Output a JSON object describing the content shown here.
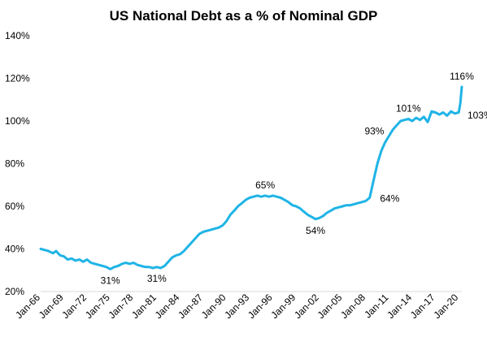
{
  "chart_data": {
    "type": "line",
    "title": "US National Debt as a % of Nominal GDP",
    "xlabel": "",
    "ylabel": "",
    "ylim": [
      20,
      140
    ],
    "y_ticks": [
      20,
      40,
      60,
      80,
      100,
      120,
      140
    ],
    "y_tick_labels": [
      "20%",
      "40%",
      "60%",
      "80%",
      "100%",
      "120%",
      "140%"
    ],
    "x_range": [
      1966,
      2020.4
    ],
    "x_ticks": [
      1966,
      1969,
      1972,
      1975,
      1978,
      1981,
      1984,
      1987,
      1990,
      1993,
      1996,
      1999,
      2002,
      2005,
      2008,
      2011,
      2014,
      2017,
      2020
    ],
    "x_tick_labels": [
      "Jan-66",
      "Jan-69",
      "Jan-72",
      "Jan-75",
      "Jan-78",
      "Jan-81",
      "Jan-84",
      "Jan-87",
      "Jan-90",
      "Jan-93",
      "Jan-96",
      "Jan-99",
      "Jan-02",
      "Jan-05",
      "Jan-08",
      "Jan-11",
      "Jan-14",
      "Jan-17",
      "Jan-20"
    ],
    "grid": false,
    "legend": "none",
    "series": [
      {
        "color": "#1fb4e6",
        "points": [
          [
            1966.0,
            40
          ],
          [
            1967.0,
            39
          ],
          [
            1967.6,
            38
          ],
          [
            1968.0,
            39
          ],
          [
            1968.5,
            37
          ],
          [
            1969.0,
            36.5
          ],
          [
            1969.5,
            35
          ],
          [
            1970.0,
            35.5
          ],
          [
            1970.5,
            34.5
          ],
          [
            1971.0,
            35
          ],
          [
            1971.5,
            34
          ],
          [
            1972.0,
            35
          ],
          [
            1972.5,
            33.5
          ],
          [
            1973.0,
            33
          ],
          [
            1973.5,
            32.5
          ],
          [
            1974.0,
            32
          ],
          [
            1974.5,
            31.5
          ],
          [
            1975.0,
            30.5
          ],
          [
            1975.5,
            31.5
          ],
          [
            1976.0,
            32
          ],
          [
            1976.5,
            33
          ],
          [
            1977.0,
            33.5
          ],
          [
            1977.5,
            33
          ],
          [
            1978.0,
            33.5
          ],
          [
            1978.5,
            32.5
          ],
          [
            1979.0,
            32
          ],
          [
            1979.5,
            31.5
          ],
          [
            1980.0,
            31.5
          ],
          [
            1980.5,
            31
          ],
          [
            1981.0,
            31.5
          ],
          [
            1981.5,
            31
          ],
          [
            1982.0,
            32
          ],
          [
            1982.5,
            34
          ],
          [
            1983.0,
            36
          ],
          [
            1983.5,
            37
          ],
          [
            1984.0,
            37.5
          ],
          [
            1984.5,
            39
          ],
          [
            1985.0,
            41
          ],
          [
            1985.5,
            43
          ],
          [
            1986.0,
            45
          ],
          [
            1986.5,
            47
          ],
          [
            1987.0,
            48
          ],
          [
            1987.5,
            48.5
          ],
          [
            1988.0,
            49
          ],
          [
            1988.5,
            49.5
          ],
          [
            1989.0,
            50
          ],
          [
            1989.5,
            51
          ],
          [
            1990.0,
            53
          ],
          [
            1990.5,
            56
          ],
          [
            1991.0,
            58
          ],
          [
            1991.5,
            60
          ],
          [
            1992.0,
            61.5
          ],
          [
            1992.5,
            63
          ],
          [
            1993.0,
            64
          ],
          [
            1993.5,
            64.5
          ],
          [
            1994.0,
            65
          ],
          [
            1994.5,
            64.5
          ],
          [
            1995.0,
            65
          ],
          [
            1995.5,
            64.5
          ],
          [
            1996.0,
            65
          ],
          [
            1996.5,
            64.5
          ],
          [
            1997.0,
            64
          ],
          [
            1997.5,
            63
          ],
          [
            1998.0,
            62
          ],
          [
            1998.5,
            60.5
          ],
          [
            1999.0,
            60
          ],
          [
            1999.5,
            59
          ],
          [
            2000.0,
            57.5
          ],
          [
            2000.5,
            56
          ],
          [
            2001.0,
            55
          ],
          [
            2001.5,
            54
          ],
          [
            2002.0,
            54.5
          ],
          [
            2002.5,
            55.5
          ],
          [
            2003.0,
            57
          ],
          [
            2003.5,
            58
          ],
          [
            2004.0,
            59
          ],
          [
            2004.5,
            59.5
          ],
          [
            2005.0,
            60
          ],
          [
            2005.5,
            60.5
          ],
          [
            2006.0,
            60.5
          ],
          [
            2006.5,
            61
          ],
          [
            2007.0,
            61.5
          ],
          [
            2007.5,
            62
          ],
          [
            2008.0,
            62.5
          ],
          [
            2008.5,
            64
          ],
          [
            2009.0,
            72
          ],
          [
            2009.5,
            80
          ],
          [
            2010.0,
            86
          ],
          [
            2010.5,
            90
          ],
          [
            2011.0,
            93
          ],
          [
            2011.5,
            96
          ],
          [
            2012.0,
            98
          ],
          [
            2012.5,
            100
          ],
          [
            2013.0,
            100.5
          ],
          [
            2013.5,
            101
          ],
          [
            2014.0,
            100
          ],
          [
            2014.5,
            101.5
          ],
          [
            2015.0,
            100.5
          ],
          [
            2015.5,
            102
          ],
          [
            2016.0,
            99.5
          ],
          [
            2016.5,
            104.5
          ],
          [
            2017.0,
            104
          ],
          [
            2017.5,
            103
          ],
          [
            2018.0,
            104
          ],
          [
            2018.5,
            102.5
          ],
          [
            2019.0,
            104.5
          ],
          [
            2019.5,
            103.5
          ],
          [
            2020.0,
            104
          ],
          [
            2020.2,
            108
          ],
          [
            2020.4,
            116
          ]
        ]
      }
    ],
    "annotations": [
      {
        "text": "31%",
        "x": 1975.0,
        "y": 30.5,
        "pos": "below"
      },
      {
        "text": "31%",
        "x": 1981.0,
        "y": 31.5,
        "pos": "below"
      },
      {
        "text": "65%",
        "x": 1995.0,
        "y": 65,
        "pos": "above"
      },
      {
        "text": "54%",
        "x": 2001.5,
        "y": 54,
        "pos": "below"
      },
      {
        "text": "64%",
        "x": 2009.2,
        "y": 64,
        "pos": "right"
      },
      {
        "text": "93%",
        "x": 2011.0,
        "y": 93,
        "pos": "left"
      },
      {
        "text": "101%",
        "x": 2013.5,
        "y": 101,
        "pos": "above"
      },
      {
        "text": "116%",
        "x": 2020.4,
        "y": 116,
        "pos": "above"
      },
      {
        "text": "103%",
        "x": 2020.5,
        "y": 103,
        "pos": "right"
      }
    ]
  }
}
